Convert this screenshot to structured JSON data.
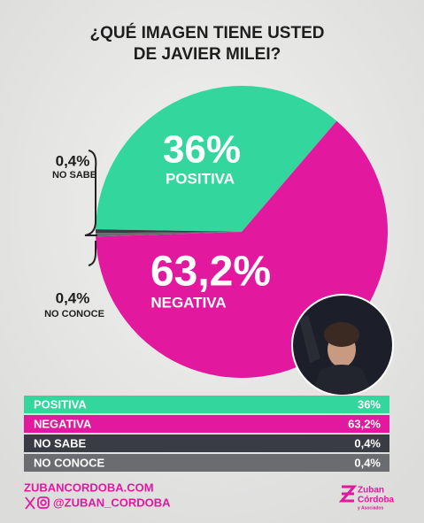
{
  "chart_data": {
    "type": "pie",
    "title": [
      "¿QUÉ IMAGEN TIENE USTED",
      "DE JAVIER MILEI?"
    ],
    "categories": [
      "POSITIVA",
      "NEGATIVA",
      "NO CONOCE",
      "NO SABE"
    ],
    "values": [
      36,
      63.2,
      0.4,
      0.4
    ],
    "value_labels": [
      "36%",
      "63,2%",
      "0,4%",
      "0,4%"
    ],
    "colors": [
      "#33d69c",
      "#e2189f",
      "#6b6c70",
      "#3a3c44"
    ]
  },
  "footer": {
    "website": "ZUBANCORDOBA.COM",
    "handle": "@ZUBAN_CORDOBA",
    "logo": [
      "Zuban",
      "Córdoba",
      "y Asociados"
    ]
  }
}
